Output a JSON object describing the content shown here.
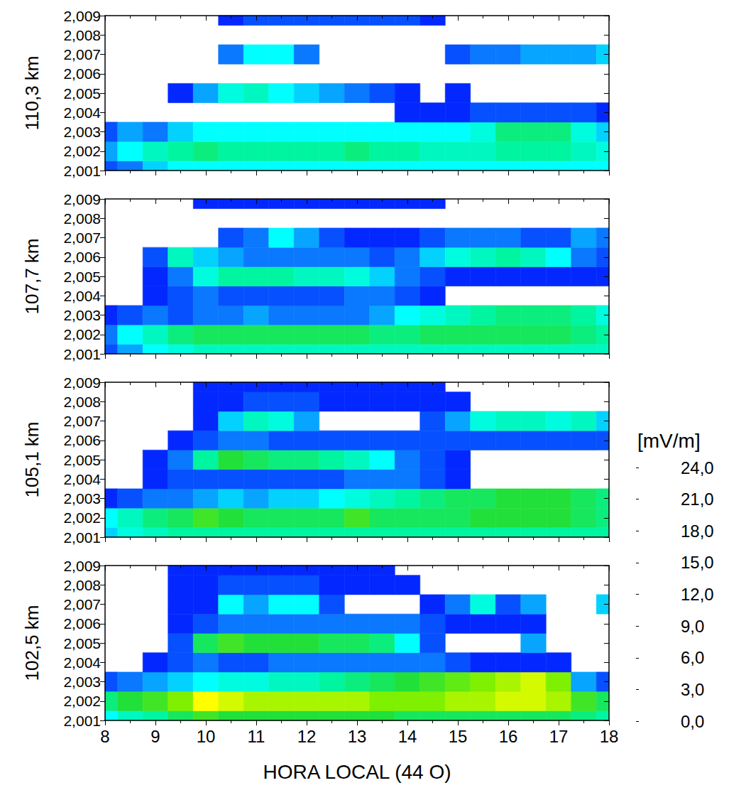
{
  "chart_data": {
    "type": "heatmap",
    "x_label": "HORA LOCAL (44 O)",
    "x": [
      8,
      8.5,
      9,
      9.5,
      10,
      10.5,
      11,
      11.5,
      12,
      12.5,
      13,
      13.5,
      14,
      14.5,
      15,
      15.5,
      16,
      16.5,
      17,
      17.5,
      18
    ],
    "y": [
      2001,
      2002,
      2003,
      2004,
      2005,
      2006,
      2007,
      2008,
      2009
    ],
    "xlim": [
      8,
      18
    ],
    "xticks": [
      8,
      9,
      10,
      11,
      12,
      13,
      14,
      15,
      16,
      17,
      18
    ],
    "ylim": [
      2001,
      2009
    ],
    "yticks": [
      2001,
      2002,
      2003,
      2004,
      2005,
      2006,
      2007,
      2008,
      2009
    ],
    "panels": [
      {
        "y_label": "110,3 km",
        "cells": [
          [
            2,
            3,
            5,
            6,
            6,
            6,
            6,
            6,
            6,
            6,
            6,
            6,
            6,
            6,
            6,
            6,
            6,
            6,
            6,
            6,
            6
          ],
          [
            4,
            6,
            8,
            9,
            10,
            9,
            9,
            9,
            9,
            9,
            10,
            9,
            9,
            8,
            8,
            8,
            9,
            9,
            9,
            8,
            7
          ],
          [
            2,
            4,
            3,
            5,
            6,
            6,
            6,
            6,
            6,
            6,
            6,
            6,
            6,
            6,
            6,
            7,
            10,
            10,
            10,
            7,
            5
          ],
          [
            null,
            null,
            null,
            null,
            null,
            null,
            null,
            null,
            null,
            null,
            null,
            null,
            1,
            1,
            1,
            2,
            2,
            2,
            2,
            2,
            1
          ],
          [
            null,
            null,
            null,
            1,
            4,
            7,
            8,
            6,
            5,
            4,
            3,
            2,
            1,
            null,
            1,
            null,
            null,
            null,
            null,
            null,
            null
          ],
          [
            null,
            null,
            null,
            null,
            null,
            null,
            null,
            null,
            null,
            null,
            null,
            null,
            null,
            null,
            null,
            null,
            null,
            null,
            null,
            null,
            null
          ],
          [
            null,
            null,
            null,
            null,
            null,
            3,
            6,
            6,
            3,
            null,
            null,
            null,
            null,
            null,
            2,
            3,
            3,
            4,
            4,
            4,
            5
          ],
          [
            null,
            null,
            null,
            null,
            null,
            null,
            null,
            null,
            null,
            null,
            null,
            null,
            null,
            null,
            null,
            null,
            null,
            null,
            null,
            null,
            null
          ],
          [
            null,
            null,
            null,
            null,
            null,
            1,
            2,
            2,
            2,
            2,
            2,
            2,
            2,
            1,
            null,
            null,
            null,
            null,
            null,
            null,
            null
          ]
        ]
      },
      {
        "y_label": "107,7 km",
        "cells": [
          [
            2,
            4,
            6,
            7,
            8,
            8,
            8,
            8,
            8,
            8,
            8,
            8,
            8,
            8,
            8,
            8,
            8,
            8,
            8,
            8,
            8
          ],
          [
            3,
            6,
            8,
            10,
            11,
            11,
            11,
            11,
            11,
            11,
            11,
            10,
            10,
            11,
            11,
            11,
            11,
            11,
            11,
            10,
            9
          ],
          [
            1,
            2,
            3,
            2,
            3,
            3,
            4,
            3,
            3,
            3,
            3,
            4,
            6,
            7,
            8,
            9,
            10,
            10,
            10,
            9,
            7
          ],
          [
            null,
            null,
            1,
            2,
            3,
            2,
            2,
            2,
            2,
            2,
            3,
            3,
            2,
            1,
            null,
            null,
            null,
            null,
            null,
            null,
            null
          ],
          [
            null,
            null,
            1,
            3,
            7,
            9,
            9,
            9,
            8,
            8,
            7,
            5,
            3,
            2,
            1,
            1,
            1,
            1,
            1,
            1,
            1
          ],
          [
            null,
            null,
            2,
            8,
            5,
            4,
            3,
            3,
            3,
            3,
            3,
            2,
            3,
            5,
            7,
            8,
            9,
            8,
            6,
            3,
            2
          ],
          [
            null,
            null,
            null,
            null,
            null,
            2,
            3,
            6,
            4,
            2,
            1,
            1,
            1,
            2,
            3,
            3,
            3,
            2,
            2,
            4,
            3
          ],
          [
            null,
            null,
            null,
            null,
            null,
            null,
            null,
            null,
            null,
            null,
            null,
            null,
            null,
            null,
            null,
            null,
            null,
            null,
            null,
            null,
            null
          ],
          [
            null,
            null,
            null,
            null,
            1,
            1,
            1,
            1,
            1,
            1,
            1,
            1,
            1,
            1,
            null,
            null,
            null,
            null,
            null,
            null,
            null
          ]
        ]
      },
      {
        "y_label": "105,1 km",
        "cells": [
          [
            5,
            7,
            8,
            9,
            9,
            9,
            9,
            9,
            9,
            9,
            9,
            9,
            9,
            9,
            9,
            9,
            9,
            9,
            9,
            9,
            9
          ],
          [
            6,
            8,
            10,
            11,
            13,
            12,
            11,
            11,
            11,
            11,
            13,
            11,
            11,
            11,
            11,
            12,
            12,
            12,
            12,
            11,
            10
          ],
          [
            1,
            2,
            3,
            3,
            4,
            5,
            4,
            5,
            5,
            6,
            7,
            8,
            9,
            10,
            11,
            11,
            12,
            12,
            12,
            11,
            10
          ],
          [
            null,
            null,
            1,
            2,
            2,
            2,
            2,
            2,
            2,
            2,
            3,
            3,
            3,
            2,
            1,
            null,
            null,
            null,
            null,
            null,
            null
          ],
          [
            null,
            null,
            1,
            3,
            9,
            12,
            11,
            10,
            10,
            9,
            8,
            6,
            3,
            2,
            1,
            null,
            null,
            null,
            null,
            null,
            null
          ],
          [
            null,
            null,
            null,
            1,
            2,
            3,
            3,
            2,
            2,
            2,
            2,
            2,
            2,
            2,
            2,
            2,
            2,
            2,
            2,
            2,
            2
          ],
          [
            null,
            null,
            null,
            null,
            1,
            5,
            8,
            7,
            4,
            null,
            null,
            null,
            null,
            2,
            4,
            7,
            8,
            8,
            7,
            8,
            5
          ],
          [
            null,
            null,
            null,
            null,
            1,
            1,
            2,
            2,
            2,
            1,
            1,
            1,
            1,
            1,
            1,
            null,
            null,
            null,
            null,
            null,
            null
          ],
          [
            null,
            null,
            null,
            null,
            1,
            1,
            1,
            1,
            1,
            1,
            1,
            1,
            1,
            1,
            null,
            null,
            null,
            null,
            null,
            null,
            null
          ]
        ]
      },
      {
        "y_label": "102,5 km",
        "cells": [
          [
            6,
            8,
            9,
            11,
            13,
            12,
            12,
            12,
            12,
            12,
            12,
            12,
            11,
            11,
            11,
            11,
            11,
            11,
            11,
            10,
            9
          ],
          [
            10,
            12,
            13,
            15,
            18,
            17,
            16,
            16,
            16,
            16,
            16,
            15,
            15,
            15,
            16,
            16,
            17,
            17,
            16,
            13,
            11
          ],
          [
            2,
            3,
            4,
            5,
            6,
            7,
            7,
            8,
            8,
            9,
            10,
            11,
            12,
            13,
            14,
            15,
            16,
            17,
            15,
            4,
            2
          ],
          [
            null,
            null,
            1,
            2,
            3,
            2,
            2,
            3,
            3,
            3,
            3,
            3,
            3,
            3,
            2,
            1,
            1,
            1,
            1,
            null,
            null
          ],
          [
            null,
            null,
            null,
            2,
            11,
            13,
            12,
            12,
            12,
            11,
            11,
            10,
            6,
            2,
            null,
            null,
            null,
            4,
            null,
            null,
            null
          ],
          [
            null,
            null,
            null,
            1,
            2,
            3,
            3,
            3,
            3,
            3,
            3,
            3,
            3,
            2,
            1,
            1,
            1,
            1,
            null,
            null,
            null
          ],
          [
            null,
            null,
            null,
            1,
            1,
            6,
            4,
            6,
            6,
            2,
            null,
            null,
            null,
            1,
            3,
            7,
            2,
            4,
            null,
            null,
            5
          ],
          [
            null,
            null,
            null,
            1,
            1,
            2,
            2,
            2,
            2,
            1,
            1,
            1,
            1,
            null,
            null,
            null,
            null,
            null,
            null,
            null,
            null
          ],
          [
            null,
            null,
            null,
            1,
            1,
            1,
            1,
            1,
            1,
            1,
            1,
            1,
            null,
            null,
            null,
            null,
            null,
            null,
            null,
            null,
            null
          ]
        ]
      }
    ],
    "colorbar": {
      "label": "[mV/m]",
      "range": [
        0,
        24
      ],
      "ticks": [
        {
          "value": 0,
          "label": "0,0"
        },
        {
          "value": 3,
          "label": "3,0"
        },
        {
          "value": 6,
          "label": "6,0"
        },
        {
          "value": 9,
          "label": "9,0"
        },
        {
          "value": 12,
          "label": "12,0"
        },
        {
          "value": 15,
          "label": "15,0"
        },
        {
          "value": 18,
          "label": "18,0"
        },
        {
          "value": 21,
          "label": "21,0"
        },
        {
          "value": 24,
          "label": "24,0"
        }
      ],
      "colors": [
        "#0000ff",
        "#0a78ff",
        "#00ffff",
        "#00f5a0",
        "#22e03a",
        "#7ef000",
        "#ffff00",
        "#ff8c00",
        "#ff0000"
      ]
    }
  }
}
